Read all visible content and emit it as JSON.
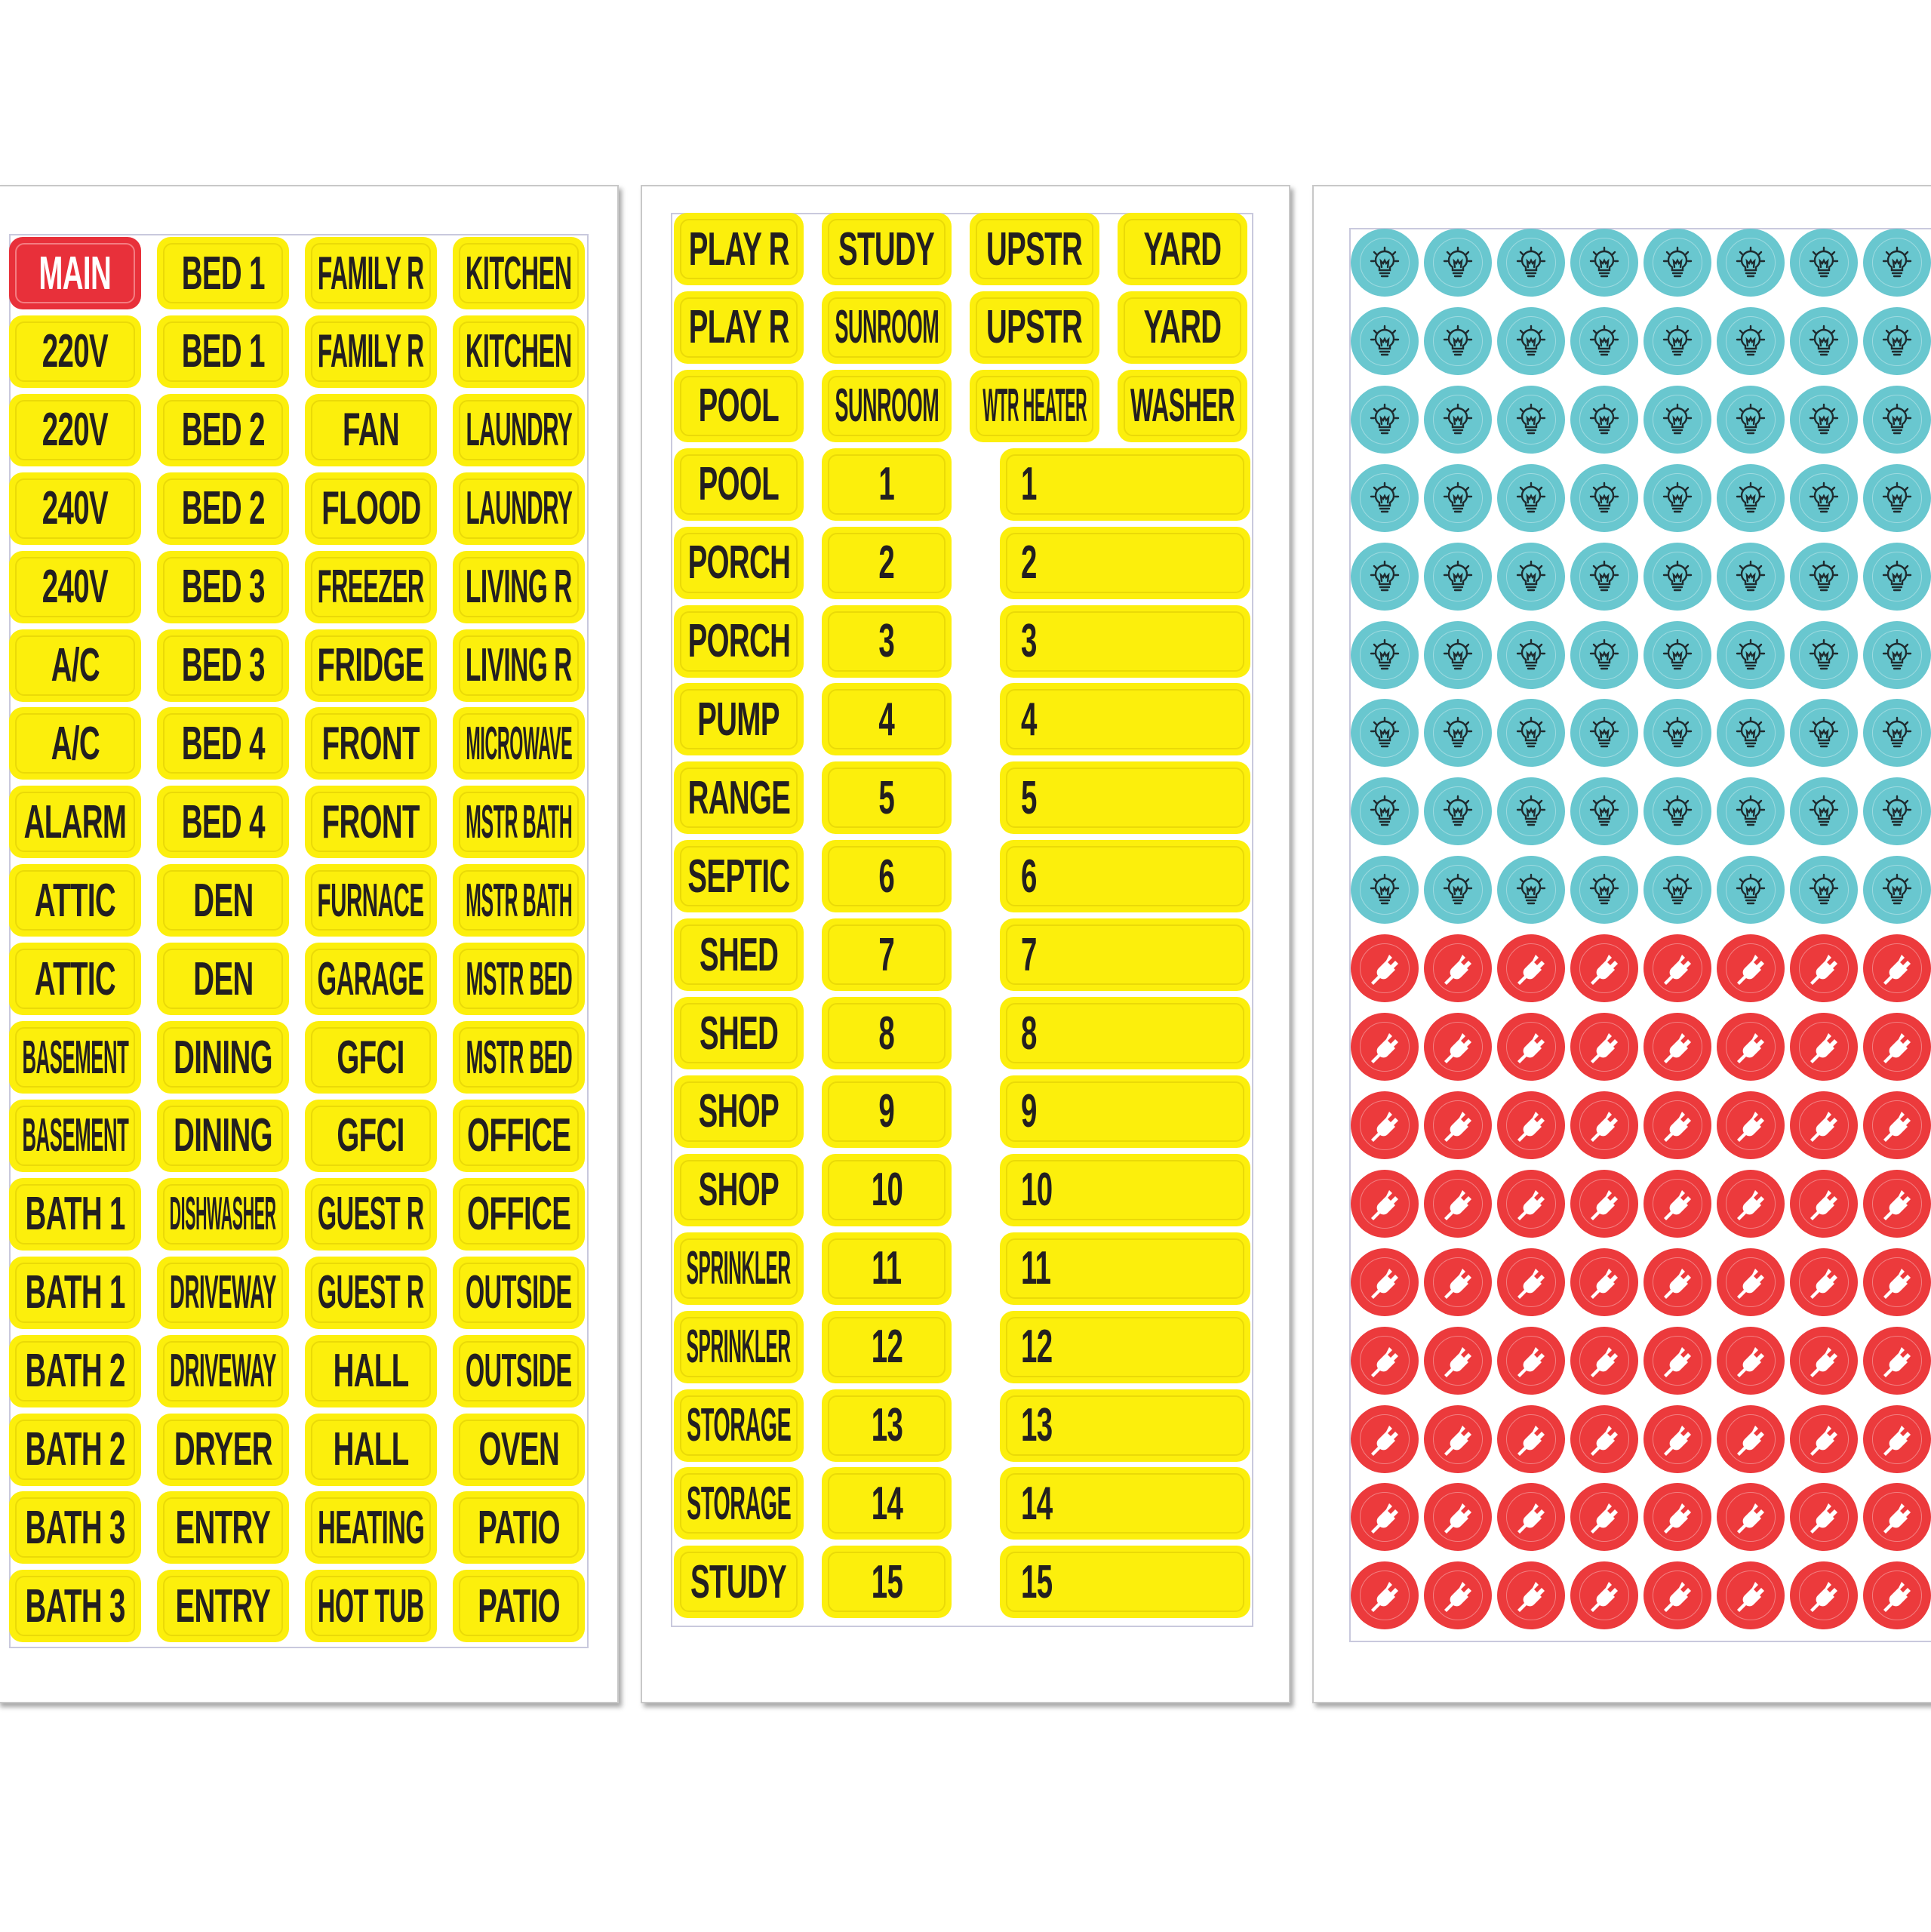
{
  "colors": {
    "label_yellow": "#fcef0c",
    "label_red": "#e8303a",
    "light_circle": "#69c7cf",
    "outlet_circle": "#ec3a3c",
    "text": "#231f20"
  },
  "sheet1": {
    "columns": [
      [
        "MAIN",
        "220V",
        "220V",
        "240V",
        "240V",
        "A/C",
        "A/C",
        "ALARM",
        "ATTIC",
        "ATTIC",
        "BASEMENT",
        "BASEMENT",
        "BATH 1",
        "BATH 1",
        "BATH 2",
        "BATH 2",
        "BATH 3",
        "BATH 3"
      ],
      [
        "BED 1",
        "BED 1",
        "BED 2",
        "BED 2",
        "BED 3",
        "BED 3",
        "BED 4",
        "BED 4",
        "DEN",
        "DEN",
        "DINING",
        "DINING",
        "DISHWASHER",
        "DRIVEWAY",
        "DRIVEWAY",
        "DRYER",
        "ENTRY",
        "ENTRY"
      ],
      [
        "FAMILY R",
        "FAMILY R",
        "FAN",
        "FLOOD",
        "FREEZER",
        "FRIDGE",
        "FRONT",
        "FRONT",
        "FURNACE",
        "GARAGE",
        "GFCI",
        "GFCI",
        "GUEST R",
        "GUEST R",
        "HALL",
        "HALL",
        "HEATING",
        "HOT TUB"
      ],
      [
        "KITCHEN",
        "KITCHEN",
        "LAUNDRY",
        "LAUNDRY",
        "LIVING R",
        "LIVING R",
        "MICROWAVE",
        "MSTR BATH",
        "MSTR BATH",
        "MSTR BED",
        "MSTR BED",
        "OFFICE",
        "OFFICE",
        "OUTSIDE",
        "OUTSIDE",
        "OVEN",
        "PATIO",
        "PATIO"
      ]
    ],
    "red_label": "MAIN"
  },
  "sheet2": {
    "top_rows": [
      [
        "PLAY R",
        "STUDY",
        "UPSTR",
        "YARD"
      ],
      [
        "PLAY R",
        "SUNROOM",
        "UPSTR",
        "YARD"
      ],
      [
        "POOL",
        "SUNROOM",
        "WTR HEATER",
        "WASHER"
      ]
    ],
    "names": [
      "POOL",
      "PORCH",
      "PORCH",
      "PUMP",
      "RANGE",
      "SEPTIC",
      "SHED",
      "SHED",
      "SHOP",
      "SHOP",
      "SPRINKLER",
      "SPRINKLER",
      "STORAGE",
      "STORAGE",
      "STUDY"
    ],
    "numbers": [
      "1",
      "2",
      "3",
      "4",
      "5",
      "6",
      "7",
      "8",
      "9",
      "10",
      "11",
      "12",
      "13",
      "14",
      "15"
    ],
    "wide_numbers": [
      "1",
      "2",
      "3",
      "4",
      "5",
      "6",
      "7",
      "8",
      "9",
      "10",
      "11",
      "12",
      "13",
      "14",
      "15"
    ]
  },
  "sheet3": {
    "light_icon": "lightbulb-icon",
    "outlet_icon": "plug-icon",
    "light_rows": 9,
    "outlet_rows": 9,
    "visible_columns": 8
  }
}
